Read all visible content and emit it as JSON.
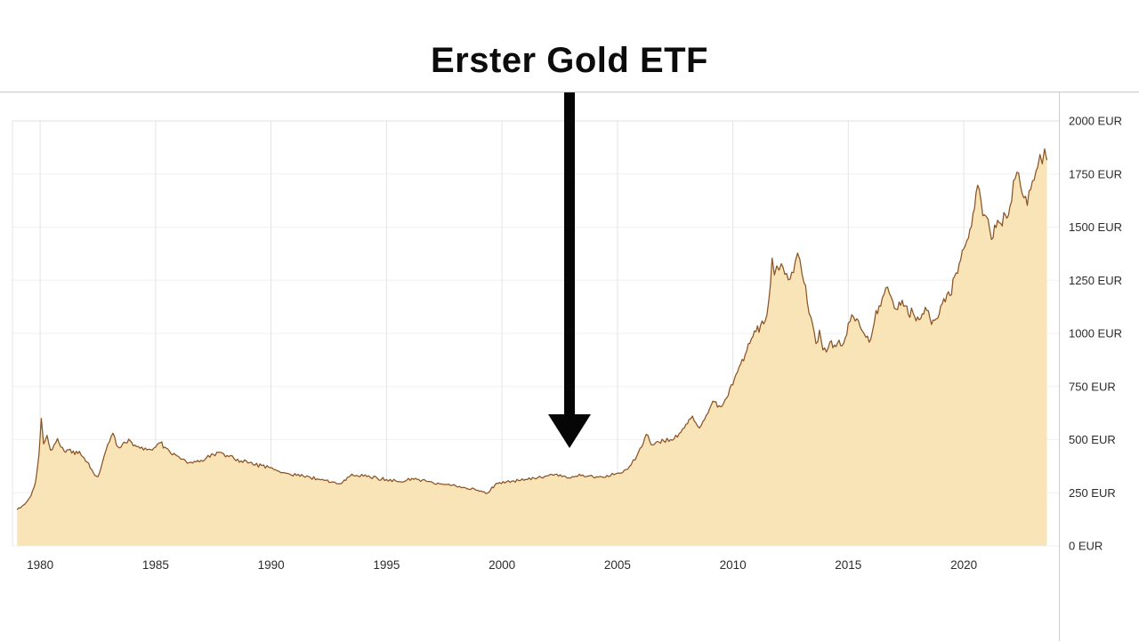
{
  "title": "Erster Gold ETF",
  "chart_data": {
    "type": "area",
    "title": "Erster Gold ETF",
    "xlabel": "",
    "ylabel": "EUR",
    "xlim": [
      1978.8,
      2024.12
    ],
    "ylim": [
      0,
      2000
    ],
    "legend": "none",
    "grid": "on",
    "y_axis_side": "right",
    "y_ticks": [
      {
        "value": 2000,
        "label": "2000 EUR"
      },
      {
        "value": 1750,
        "label": "1750 EUR"
      },
      {
        "value": 1500,
        "label": "1500 EUR"
      },
      {
        "value": 1250,
        "label": "1250 EUR"
      },
      {
        "value": 1000,
        "label": "1000 EUR"
      },
      {
        "value": 750,
        "label": "750 EUR"
      },
      {
        "value": 500,
        "label": "500 EUR"
      },
      {
        "value": 250,
        "label": "250 EUR"
      },
      {
        "value": 0,
        "label": "0 EUR"
      }
    ],
    "x_ticks": [
      {
        "value": 1980,
        "label": "1980"
      },
      {
        "value": 1985,
        "label": "1985"
      },
      {
        "value": 1990,
        "label": "1990"
      },
      {
        "value": 1995,
        "label": "1995"
      },
      {
        "value": 2000,
        "label": "2000"
      },
      {
        "value": 2005,
        "label": "2005"
      },
      {
        "value": 2010,
        "label": "2010"
      },
      {
        "value": 2015,
        "label": "2015"
      },
      {
        "value": 2020,
        "label": "2020"
      }
    ],
    "annotations": [
      {
        "type": "arrow",
        "points_to_year": 2003,
        "direction": "down"
      }
    ],
    "colors": {
      "line": "#8a5424",
      "fill": "#f9e4b8",
      "grid": "#e4e4e4",
      "grid_faint": "#f1f1f1",
      "grid_strong": "#e0e0e0",
      "axis_text": "#2b2b2b",
      "border": "#cfcfcf",
      "annotation": "#060606"
    },
    "series": [
      {
        "id": "gold-price-eur",
        "points": [
          [
            1979.0,
            170
          ],
          [
            1979.2,
            185
          ],
          [
            1979.4,
            205
          ],
          [
            1979.6,
            235
          ],
          [
            1979.8,
            300
          ],
          [
            1979.95,
            430
          ],
          [
            1980.05,
            600
          ],
          [
            1980.15,
            480
          ],
          [
            1980.3,
            520
          ],
          [
            1980.45,
            450
          ],
          [
            1980.6,
            475
          ],
          [
            1980.75,
            505
          ],
          [
            1980.9,
            465
          ],
          [
            1981.1,
            440
          ],
          [
            1981.3,
            455
          ],
          [
            1981.5,
            430
          ],
          [
            1981.7,
            445
          ],
          [
            1981.9,
            415
          ],
          [
            1982.1,
            390
          ],
          [
            1982.3,
            345
          ],
          [
            1982.5,
            325
          ],
          [
            1982.7,
            395
          ],
          [
            1982.85,
            450
          ],
          [
            1983.0,
            490
          ],
          [
            1983.15,
            530
          ],
          [
            1983.3,
            475
          ],
          [
            1983.5,
            465
          ],
          [
            1983.7,
            485
          ],
          [
            1983.9,
            495
          ],
          [
            1984.1,
            475
          ],
          [
            1984.4,
            465
          ],
          [
            1984.7,
            455
          ],
          [
            1985.0,
            465
          ],
          [
            1985.2,
            485
          ],
          [
            1985.4,
            465
          ],
          [
            1985.6,
            445
          ],
          [
            1985.8,
            435
          ],
          [
            1986.0,
            420
          ],
          [
            1986.3,
            400
          ],
          [
            1986.6,
            390
          ],
          [
            1986.9,
            395
          ],
          [
            1987.2,
            415
          ],
          [
            1987.5,
            430
          ],
          [
            1987.8,
            440
          ],
          [
            1988.1,
            425
          ],
          [
            1988.4,
            410
          ],
          [
            1988.7,
            400
          ],
          [
            1989.0,
            390
          ],
          [
            1989.3,
            380
          ],
          [
            1989.6,
            378
          ],
          [
            1989.9,
            370
          ],
          [
            1990.2,
            358
          ],
          [
            1990.5,
            345
          ],
          [
            1990.8,
            338
          ],
          [
            1991.1,
            332
          ],
          [
            1991.4,
            328
          ],
          [
            1991.7,
            322
          ],
          [
            1992.0,
            315
          ],
          [
            1992.3,
            308
          ],
          [
            1992.6,
            300
          ],
          [
            1992.9,
            292
          ],
          [
            1993.1,
            300
          ],
          [
            1993.3,
            322
          ],
          [
            1993.5,
            338
          ],
          [
            1993.7,
            332
          ],
          [
            1994.0,
            328
          ],
          [
            1994.3,
            322
          ],
          [
            1994.6,
            318
          ],
          [
            1995.0,
            312
          ],
          [
            1995.4,
            306
          ],
          [
            1995.8,
            304
          ],
          [
            1996.1,
            318
          ],
          [
            1996.4,
            312
          ],
          [
            1996.7,
            306
          ],
          [
            1997.0,
            298
          ],
          [
            1997.3,
            292
          ],
          [
            1997.6,
            288
          ],
          [
            1998.0,
            282
          ],
          [
            1998.4,
            274
          ],
          [
            1998.8,
            268
          ],
          [
            1999.1,
            258
          ],
          [
            1999.3,
            246
          ],
          [
            1999.5,
            262
          ],
          [
            1999.7,
            288
          ],
          [
            1999.9,
            298
          ],
          [
            2000.2,
            302
          ],
          [
            2000.5,
            306
          ],
          [
            2000.8,
            308
          ],
          [
            2001.1,
            312
          ],
          [
            2001.4,
            318
          ],
          [
            2001.7,
            322
          ],
          [
            2002.0,
            330
          ],
          [
            2002.3,
            336
          ],
          [
            2002.6,
            326
          ],
          [
            2002.9,
            320
          ],
          [
            2003.2,
            328
          ],
          [
            2003.5,
            334
          ],
          [
            2003.8,
            330
          ],
          [
            2004.1,
            326
          ],
          [
            2004.4,
            322
          ],
          [
            2004.7,
            330
          ],
          [
            2005.0,
            342
          ],
          [
            2005.3,
            356
          ],
          [
            2005.6,
            382
          ],
          [
            2005.85,
            425
          ],
          [
            2006.05,
            465
          ],
          [
            2006.25,
            525
          ],
          [
            2006.4,
            492
          ],
          [
            2006.6,
            478
          ],
          [
            2006.8,
            488
          ],
          [
            2007.0,
            494
          ],
          [
            2007.3,
            500
          ],
          [
            2007.6,
            512
          ],
          [
            2007.9,
            555
          ],
          [
            2008.1,
            595
          ],
          [
            2008.25,
            611
          ],
          [
            2008.4,
            578
          ],
          [
            2008.55,
            555
          ],
          [
            2008.7,
            585
          ],
          [
            2008.85,
            615
          ],
          [
            2009.0,
            648
          ],
          [
            2009.2,
            678
          ],
          [
            2009.4,
            660
          ],
          [
            2009.6,
            672
          ],
          [
            2009.8,
            708
          ],
          [
            2010.0,
            758
          ],
          [
            2010.2,
            818
          ],
          [
            2010.4,
            878
          ],
          [
            2010.6,
            918
          ],
          [
            2010.8,
            975
          ],
          [
            2011.0,
            1008
          ],
          [
            2011.2,
            1038
          ],
          [
            2011.4,
            1058
          ],
          [
            2011.55,
            1150
          ],
          [
            2011.7,
            1355
          ],
          [
            2011.8,
            1275
          ],
          [
            2011.9,
            1318
          ],
          [
            2012.0,
            1298
          ],
          [
            2012.1,
            1328
          ],
          [
            2012.25,
            1278
          ],
          [
            2012.4,
            1252
          ],
          [
            2012.55,
            1288
          ],
          [
            2012.7,
            1338
          ],
          [
            2012.8,
            1378
          ],
          [
            2012.9,
            1348
          ],
          [
            2013.0,
            1278
          ],
          [
            2013.15,
            1225
          ],
          [
            2013.3,
            1095
          ],
          [
            2013.45,
            1045
          ],
          [
            2013.6,
            952
          ],
          [
            2013.75,
            1015
          ],
          [
            2013.9,
            922
          ],
          [
            2014.05,
            912
          ],
          [
            2014.2,
            958
          ],
          [
            2014.4,
            945
          ],
          [
            2014.6,
            968
          ],
          [
            2014.8,
            955
          ],
          [
            2015.0,
            1048
          ],
          [
            2015.15,
            1088
          ],
          [
            2015.3,
            1058
          ],
          [
            2015.5,
            1035
          ],
          [
            2015.7,
            995
          ],
          [
            2015.9,
            958
          ],
          [
            2016.05,
            1012
          ],
          [
            2016.2,
            1108
          ],
          [
            2016.4,
            1128
          ],
          [
            2016.55,
            1185
          ],
          [
            2016.7,
            1218
          ],
          [
            2016.85,
            1172
          ],
          [
            2017.0,
            1118
          ],
          [
            2017.2,
            1148
          ],
          [
            2017.4,
            1128
          ],
          [
            2017.6,
            1088
          ],
          [
            2017.8,
            1098
          ],
          [
            2018.0,
            1078
          ],
          [
            2018.2,
            1092
          ],
          [
            2018.4,
            1108
          ],
          [
            2018.6,
            1042
          ],
          [
            2018.8,
            1068
          ],
          [
            2019.0,
            1128
          ],
          [
            2019.2,
            1148
          ],
          [
            2019.4,
            1178
          ],
          [
            2019.6,
            1268
          ],
          [
            2019.8,
            1328
          ],
          [
            2020.0,
            1398
          ],
          [
            2020.2,
            1448
          ],
          [
            2020.4,
            1565
          ],
          [
            2020.6,
            1698
          ],
          [
            2020.75,
            1618
          ],
          [
            2020.9,
            1558
          ],
          [
            2021.05,
            1538
          ],
          [
            2021.2,
            1442
          ],
          [
            2021.4,
            1498
          ],
          [
            2021.6,
            1518
          ],
          [
            2021.8,
            1558
          ],
          [
            2022.0,
            1598
          ],
          [
            2022.15,
            1718
          ],
          [
            2022.3,
            1758
          ],
          [
            2022.45,
            1698
          ],
          [
            2022.6,
            1638
          ],
          [
            2022.75,
            1602
          ],
          [
            2022.9,
            1678
          ],
          [
            2023.05,
            1722
          ],
          [
            2023.2,
            1782
          ],
          [
            2023.3,
            1842
          ],
          [
            2023.4,
            1798
          ],
          [
            2023.5,
            1868
          ],
          [
            2023.6,
            1815
          ]
        ]
      }
    ]
  }
}
